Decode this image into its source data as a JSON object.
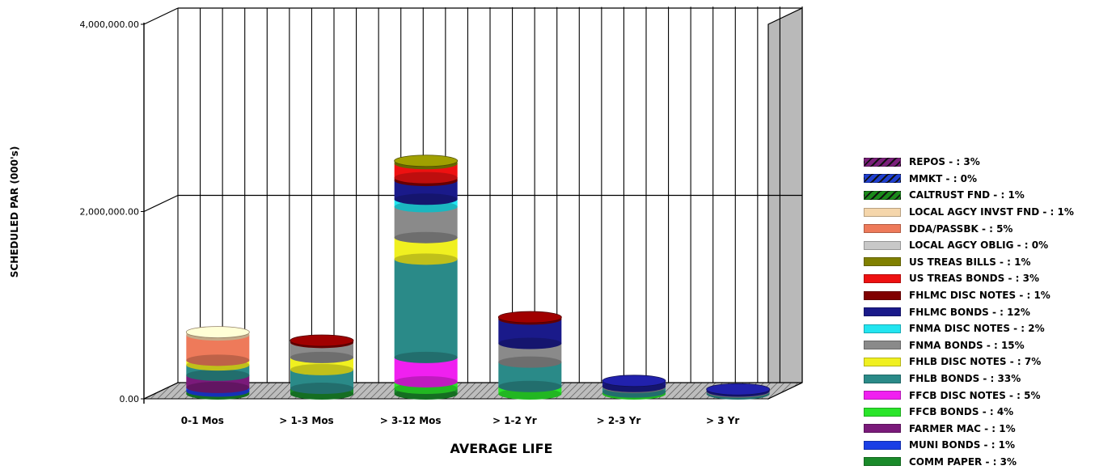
{
  "chart_data": {
    "type": "bar",
    "stacked": true,
    "three_d": true,
    "xlabel": "AVERAGE LIFE",
    "ylabel": "SCHEDULED PAR (000's)",
    "ylim": [
      0,
      4000000
    ],
    "yticks": [
      "0.00",
      "2,000,000.00",
      "4,000,000.00"
    ],
    "yticks_values": [
      0,
      2000000,
      4000000
    ],
    "grid": true,
    "legend_position": "right",
    "categories": [
      "0-1 Mos",
      "> 1-3 Mos",
      "> 3-12 Mos",
      "> 1-2 Yr",
      "> 2-3 Yr",
      "> 3 Yr"
    ],
    "series": [
      {
        "name": "REPOS - : 3%",
        "color": "#7a1f7a",
        "hatch": true,
        "values": [
          0,
          0,
          0,
          0,
          0,
          0
        ]
      },
      {
        "name": "MMKT - : 0%",
        "color": "#1f3fcf",
        "hatch": true,
        "values": [
          0,
          0,
          0,
          0,
          0,
          0
        ]
      },
      {
        "name": "CALTRUST FND - : 1%",
        "color": "#1a8a1a",
        "hatch": true,
        "values": [
          0,
          0,
          0,
          0,
          0,
          0
        ]
      },
      {
        "name": "LOCAL AGCY INVST FND - : 1%",
        "color": "#f5d6ab",
        "values": [
          30000,
          0,
          0,
          0,
          0,
          0
        ]
      },
      {
        "name": "DDA/PASSBK - : 5%",
        "color": "#ee7a5a",
        "values": [
          270000,
          0,
          0,
          0,
          0,
          0
        ]
      },
      {
        "name": "LOCAL AGCY OBLIG - : 0%",
        "color": "#c8c8c8",
        "values": [
          0,
          0,
          0,
          0,
          0,
          0
        ]
      },
      {
        "name": "US TREAS BILLS - : 1%",
        "color": "#808000",
        "values": [
          0,
          0,
          30000,
          0,
          0,
          0
        ]
      },
      {
        "name": "US TREAS BONDS - : 3%",
        "color": "#ee1111",
        "values": [
          0,
          0,
          150000,
          0,
          0,
          0
        ]
      },
      {
        "name": "FHLMC DISC NOTES - : 1%",
        "color": "#800000",
        "values": [
          0,
          20000,
          30000,
          20000,
          0,
          0
        ]
      },
      {
        "name": "FHLMC BONDS - : 12%",
        "color": "#1a1a8a",
        "values": [
          0,
          0,
          200000,
          260000,
          60000,
          20000
        ]
      },
      {
        "name": "FNMA DISC NOTES - : 2%",
        "color": "#22e5f0",
        "values": [
          0,
          0,
          80000,
          0,
          0,
          0
        ]
      },
      {
        "name": "FNMA BONDS - : 15%",
        "color": "#8a8a8a",
        "values": [
          0,
          160000,
          330000,
          200000,
          10000,
          10000
        ]
      },
      {
        "name": "FHLB DISC NOTES - : 7%",
        "color": "#f0f020",
        "values": [
          50000,
          130000,
          230000,
          0,
          0,
          0
        ]
      },
      {
        "name": "FHLB BONDS - : 33%",
        "color": "#2a8a88",
        "values": [
          110000,
          200000,
          1050000,
          260000,
          50000,
          20000
        ]
      },
      {
        "name": "FFCB DISC NOTES - : 5%",
        "color": "#f020f0",
        "values": [
          0,
          0,
          260000,
          0,
          0,
          0
        ]
      },
      {
        "name": "FFCB BONDS - : 4%",
        "color": "#2ae52a",
        "values": [
          0,
          0,
          70000,
          80000,
          20000,
          0
        ]
      },
      {
        "name": "FARMER MAC - : 1%",
        "color": "#7a1a7a",
        "values": [
          130000,
          0,
          0,
          0,
          0,
          0
        ]
      },
      {
        "name": "MUNI BONDS - : 1%",
        "color": "#1a3fe5",
        "values": [
          40000,
          0,
          0,
          0,
          0,
          0
        ]
      },
      {
        "name": "COMM PAPER - : 3%",
        "color": "#1a8a2a",
        "values": [
          30000,
          60000,
          60000,
          0,
          0,
          0
        ]
      }
    ]
  }
}
